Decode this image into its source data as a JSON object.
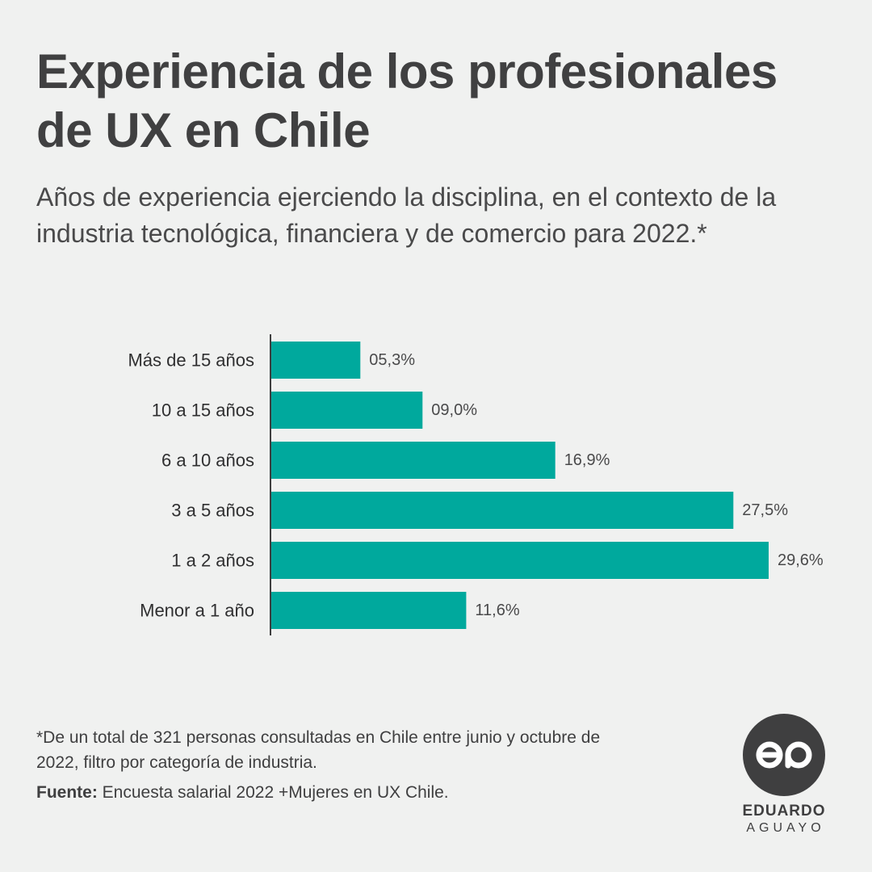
{
  "header": {
    "title": "Experiencia de los profesionales de UX en Chile",
    "subtitle": "Años de experiencia ejerciendo la disciplina, en el contexto de la industria tecnológica, financiera y de comercio para 2022.*"
  },
  "chart_data": {
    "type": "bar",
    "orientation": "horizontal",
    "categories": [
      "Más de 15 años",
      "10 a 15 años",
      "6 a 10 años",
      "3 a 5 años",
      "1 a 2 años",
      "Menor a 1 año"
    ],
    "values": [
      5.3,
      9.0,
      16.9,
      27.5,
      29.6,
      11.6
    ],
    "value_labels": [
      "05,3%",
      "09,0%",
      "16,9%",
      "27,5%",
      "29,6%",
      "11,6%"
    ],
    "xlim": [
      0,
      29.6
    ],
    "grid": false,
    "bar_color": "#00a99d"
  },
  "footer": {
    "note": "*De un total de 321 personas consultadas en Chile entre junio y octubre de 2022, filtro por categoría de industria.",
    "source_label": "Fuente:",
    "source_text": " Encuesta salarial 2022 +Mujeres en UX Chile."
  },
  "logo": {
    "monogram": "ea",
    "name": "EDUARDO",
    "surname": "AGUAYO",
    "color": "#3f3f40"
  }
}
